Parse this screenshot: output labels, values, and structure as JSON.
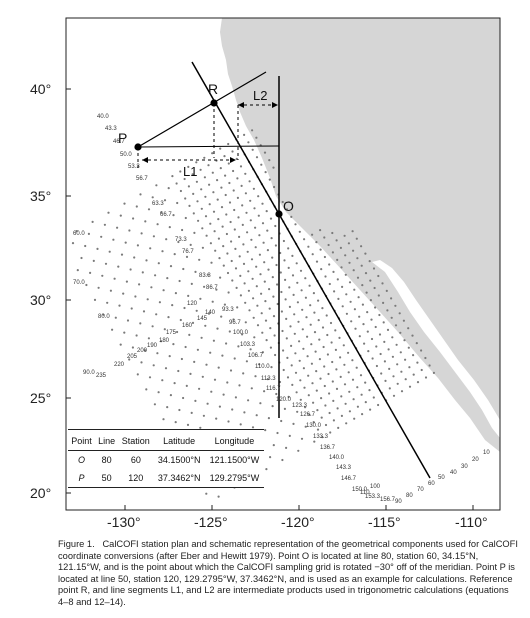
{
  "map": {
    "lat_ticks": [
      "40°",
      "35°",
      "30°",
      "25°",
      "20°"
    ],
    "lon_ticks": [
      "-130°",
      "-125°",
      "-120°",
      "-115°",
      "-110°"
    ],
    "colors": {
      "land": "#d6d6d6",
      "ocean": "#ffffff",
      "station_dot": "#7a7a7a",
      "lines": "#000000"
    }
  },
  "points": {
    "O": {
      "label": "O"
    },
    "P": {
      "label": "P"
    },
    "R": {
      "label": "R"
    }
  },
  "segments": {
    "L1": "L1",
    "L2": "L2"
  },
  "line_labels": [
    "40.0",
    "43.3",
    "46.7",
    "50.0",
    "53.3",
    "56.7",
    "60.0",
    "63.3",
    "66.7",
    "70.0",
    "73.3",
    "76.7",
    "80.0",
    "83.3",
    "86.7",
    "90.0",
    "93.3",
    "96.7",
    "100.0",
    "103.3",
    "106.7",
    "110.0",
    "113.3",
    "116.7",
    "120.0",
    "123.3",
    "126.7",
    "130.0",
    "133.3",
    "136.7",
    "140.0",
    "143.3",
    "146.7",
    "150.0",
    "153.3",
    "156.7"
  ],
  "station_labels": [
    "10",
    "20",
    "30",
    "40",
    "50",
    "60",
    "70",
    "80",
    "90",
    "100",
    "110",
    "120",
    "140",
    "145",
    "160",
    "175",
    "180",
    "190",
    "200",
    "205",
    "220",
    "235"
  ],
  "table": {
    "headers": [
      "Point",
      "Line",
      "Station",
      "Latitude",
      "Longitude"
    ],
    "rows": [
      [
        "O",
        "80",
        "60",
        "34.1500°N",
        "121.1500°W"
      ],
      [
        "P",
        "50",
        "120",
        "37.3462°N",
        "129.2795°W"
      ]
    ]
  },
  "caption": {
    "figure_label": "Figure 1.",
    "text": "CalCOFI station plan and schematic representation of the geometrical components used for CalCOFI coordinate conversions (after Eber and Hewitt 1979). Point O is located at line 80, station 60, 34.15°N, 121.15°W, and is the point about which the CalCOFI sampling grid is rotated −30° off of the meridian. Point P is located at line 50, station 120, 129.2795°W, 37.3462°N, and is used as an example for calculations. Reference point R, and line segments L1, and L2 are intermediate products used in trigonometric calculations (equations 4–8 and 12–14)."
  }
}
